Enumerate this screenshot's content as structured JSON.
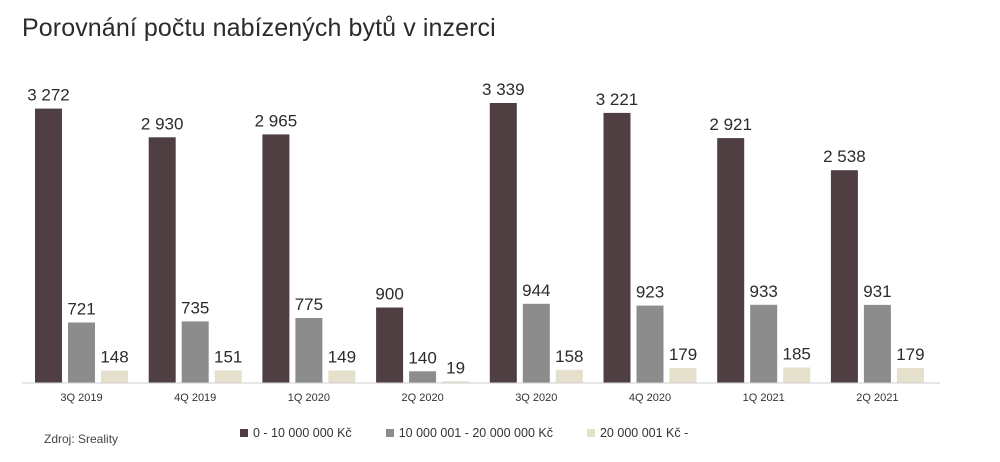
{
  "chart_data": {
    "type": "bar",
    "title": "Porovnání počtu nabízených bytů v inzerci",
    "categories": [
      "3Q 2019",
      "4Q 2019",
      "1Q 2020",
      "2Q 2020",
      "3Q 2020",
      "4Q 2020",
      "1Q 2021",
      "2Q 2021"
    ],
    "series": [
      {
        "name": "0 - 10 000 000 Kč",
        "color": "#4f3f42",
        "values": [
          3272,
          2930,
          2965,
          900,
          3339,
          3221,
          2921,
          2538
        ],
        "labels": [
          "3 272",
          "2 930",
          "2 965",
          "900",
          "3 339",
          "3 221",
          "2 921",
          "2 538"
        ]
      },
      {
        "name": "10 000 001 - 20 000 000 Kč",
        "color": "#8c8c8c",
        "values": [
          721,
          735,
          775,
          140,
          944,
          923,
          933,
          931
        ],
        "labels": [
          "721",
          "735",
          "775",
          "140",
          "944",
          "923",
          "933",
          "931"
        ]
      },
      {
        "name": "20 000 001 Kč -",
        "color": "#e5e0cc",
        "values": [
          148,
          151,
          149,
          19,
          158,
          179,
          185,
          179
        ],
        "labels": [
          "148",
          "151",
          "149",
          "19",
          "158",
          "179",
          "185",
          "179"
        ]
      }
    ],
    "ylim": [
      0,
      3339
    ],
    "grid": false,
    "legend_position": "bottom"
  },
  "source": "Zdroj: Sreality"
}
